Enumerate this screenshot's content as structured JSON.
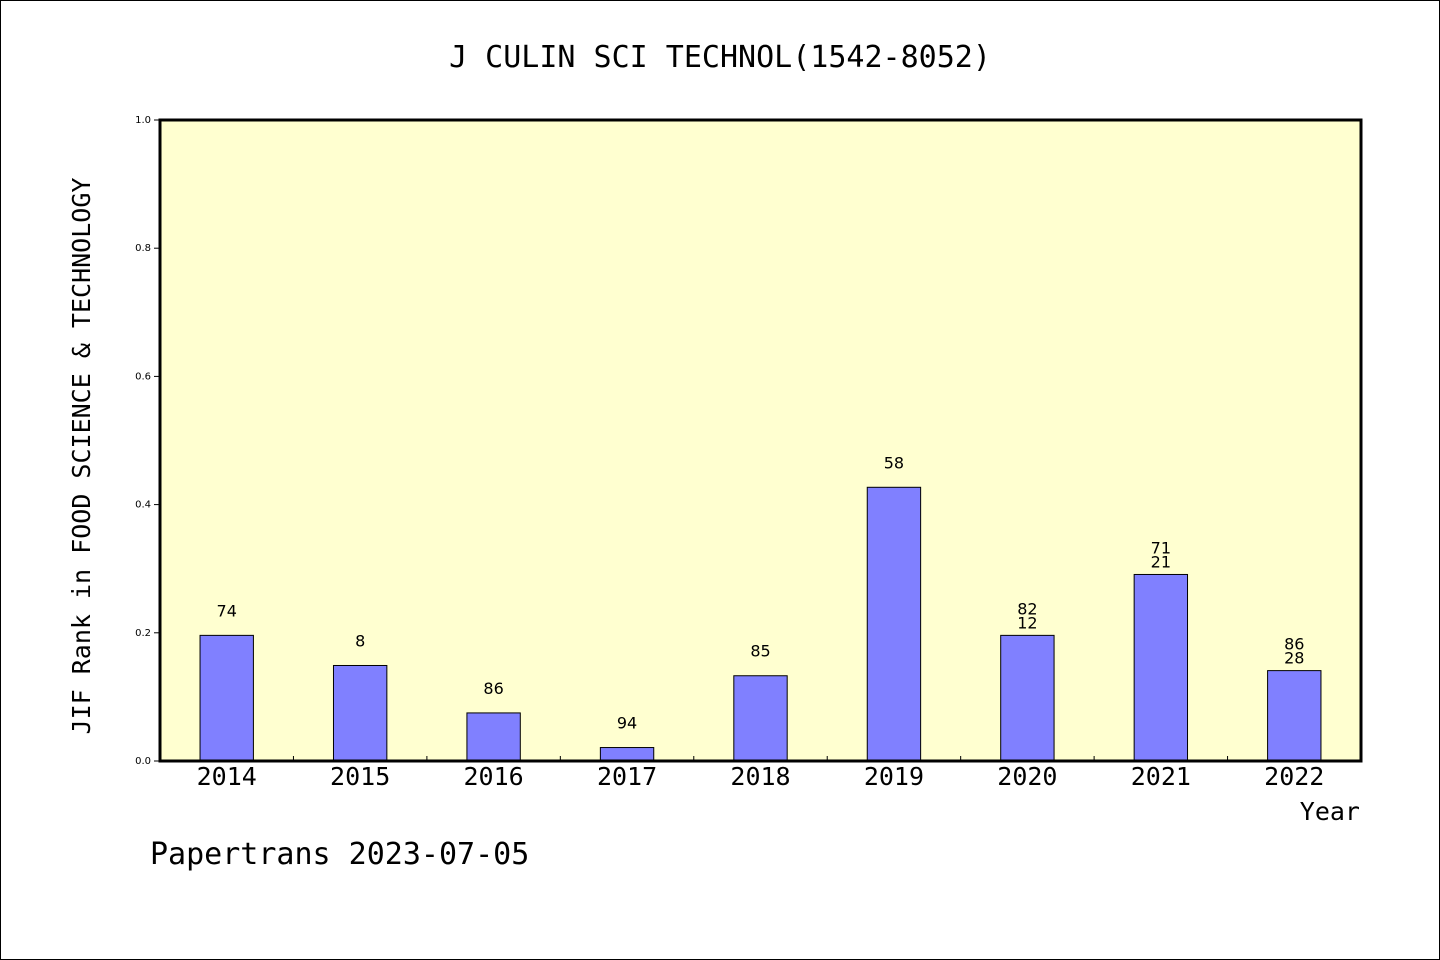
{
  "chart_data": {
    "type": "bar",
    "title": "J CULIN SCI TECHNOL(1542-8052)",
    "xlabel": "Year",
    "ylabel": "JIF Rank in FOOD SCIENCE & TECHNOLOGY",
    "ylim": [
      0,
      1.0
    ],
    "yticks": [
      "0.0",
      "0.2",
      "0.4",
      "0.6",
      "0.8",
      "1.0"
    ],
    "categories": [
      "2014",
      "2015",
      "2016",
      "2017",
      "2018",
      "2019",
      "2020",
      "2021",
      "2022"
    ],
    "values": [
      0.196,
      0.149,
      0.075,
      0.021,
      0.133,
      0.427,
      0.196,
      0.291,
      0.141
    ],
    "labels": [
      [
        "74"
      ],
      [
        "8"
      ],
      [
        "86"
      ],
      [
        "94"
      ],
      [
        "85"
      ],
      [
        "58"
      ],
      [
        "82",
        "12"
      ],
      [
        "71",
        "21"
      ],
      [
        "86",
        "28"
      ]
    ],
    "grid": false,
    "colors": {
      "plot_bg": "#ffffd0",
      "bar": "#8080ff"
    }
  },
  "footer": "Papertrans 2023-07-05"
}
